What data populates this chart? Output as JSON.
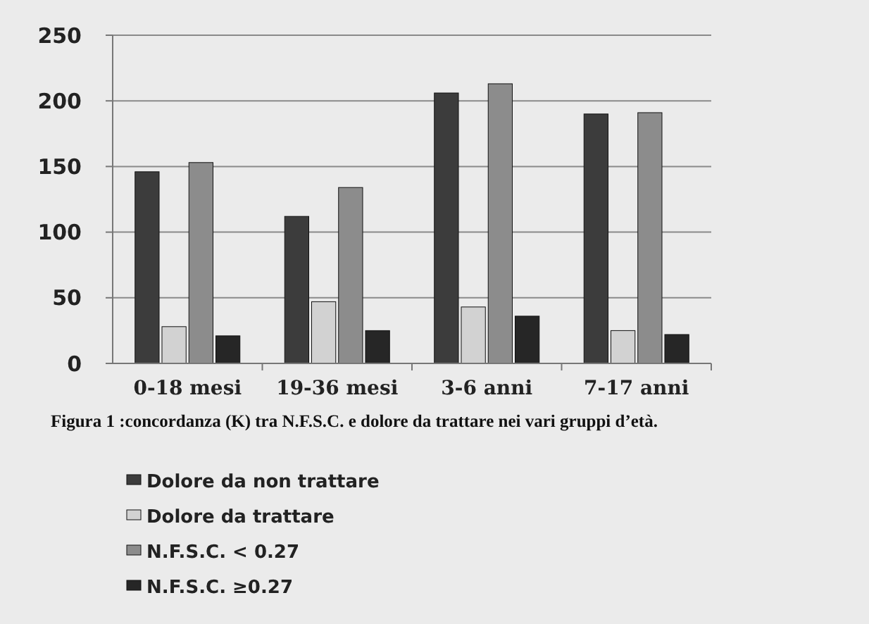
{
  "chart_data": {
    "type": "bar",
    "categories": [
      "0-18 mesi",
      "19-36 mesi",
      "3-6 anni",
      "7-17 anni"
    ],
    "series": [
      {
        "name": "Dolore da non trattare",
        "color": "#3c3c3c",
        "values": [
          146,
          112,
          206,
          190
        ]
      },
      {
        "name": "Dolore da trattare",
        "color": "#d2d2d2",
        "values": [
          28,
          47,
          43,
          25
        ]
      },
      {
        "name": "N.F.S.C. < 0.27",
        "color": "#8c8c8c",
        "values": [
          153,
          134,
          213,
          191
        ]
      },
      {
        "name": "N.F.S.C. ≥0.27",
        "color": "#262626",
        "values": [
          21,
          25,
          36,
          22
        ]
      }
    ],
    "ylim": [
      0,
      250
    ],
    "yticks": [
      0,
      50,
      100,
      150,
      200,
      250
    ],
    "grid": "y",
    "legend": "bottom left",
    "annotations": [
      "Figura 1 :concordanza (K) tra N.F.S.C. e dolore da trattare nei vari gruppi d’età."
    ]
  }
}
